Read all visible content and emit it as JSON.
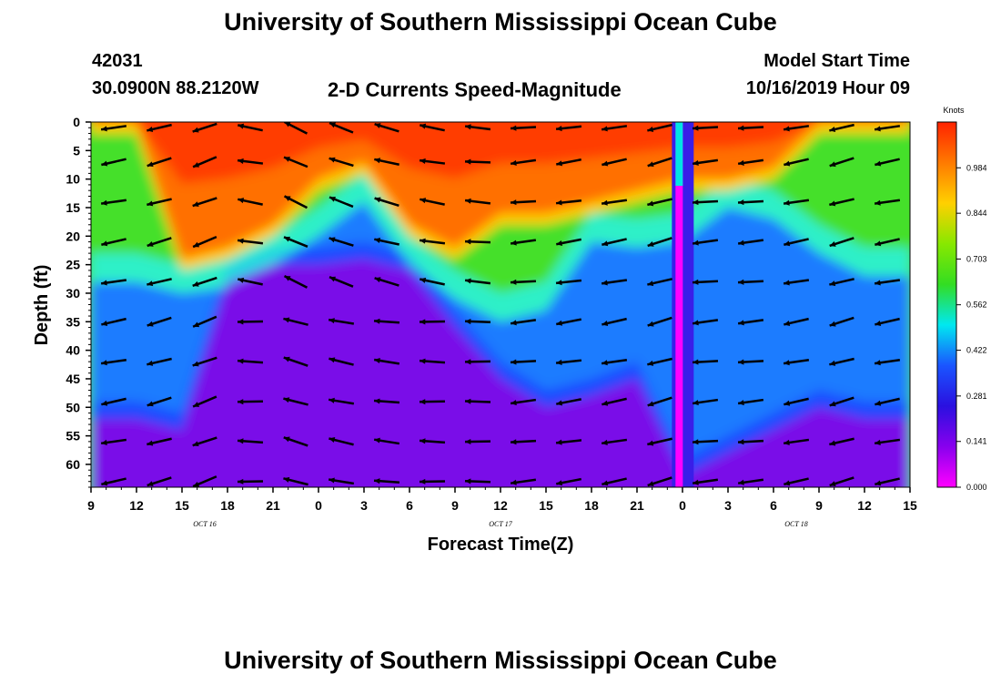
{
  "page": {
    "title_top": "University of Southern Mississippi Ocean Cube",
    "title_bottom": "University of Southern Mississippi Ocean Cube",
    "station_id": "42031",
    "location": "30.0900N 88.2120W",
    "subtitle": "2-D Currents Speed-Magnitude",
    "model_start_label": "Model Start Time",
    "model_start_value": "10/16/2019 Hour 09"
  },
  "chart_data": {
    "type": "heatmap",
    "title": "2-D Currents Speed-Magnitude",
    "xlabel": "Forecast Time(Z)",
    "ylabel": "Depth (ft)",
    "x_ticks": [
      "9",
      "12",
      "15",
      "18",
      "21",
      "0",
      "3",
      "6",
      "9",
      "12",
      "15",
      "18",
      "21",
      "0",
      "3",
      "6",
      "9",
      "12",
      "15"
    ],
    "x_range_hours": [
      0,
      54
    ],
    "date_labels": [
      {
        "text": "OCT 16",
        "hour": 7.5
      },
      {
        "text": "OCT 17",
        "hour": 27
      },
      {
        "text": "OCT 18",
        "hour": 46.5
      }
    ],
    "y_ticks": [
      "0",
      "5",
      "10",
      "15",
      "20",
      "25",
      "30",
      "35",
      "40",
      "45",
      "50",
      "55",
      "60"
    ],
    "ylim": [
      0,
      64
    ],
    "y_inverted": true,
    "colorbar": {
      "unit": "Knots",
      "ticks": [
        "0.984",
        "0.844",
        "0.703",
        "0.562",
        "0.422",
        "0.281",
        "0.141",
        "0.000"
      ],
      "range": [
        0,
        1.125
      ],
      "colors": [
        "#ff00ff",
        "#8800ee",
        "#2a10e0",
        "#1a55ff",
        "#00e8f0",
        "#33dd22",
        "#88e800",
        "#ffd000",
        "#ff7a00",
        "#ff2200"
      ]
    },
    "layers": {
      "hours": [
        0,
        3,
        6,
        9,
        12,
        15,
        18,
        21,
        24,
        27,
        30,
        33,
        36,
        39,
        42,
        45,
        48,
        51,
        54
      ],
      "upper_boundary_depth_ft": [
        23,
        23,
        25,
        24,
        20,
        15,
        9,
        20,
        26,
        30,
        28,
        16,
        17,
        16,
        10,
        12,
        18,
        22,
        22
      ],
      "lower_boundary_depth_ft": [
        52,
        52,
        54,
        28,
        25,
        25,
        24,
        26,
        36,
        45,
        50,
        48,
        45,
        62,
        58,
        54,
        50,
        52,
        52
      ],
      "orange_bottom_depth_ft": [
        0,
        0,
        24,
        22,
        18,
        10,
        7,
        18,
        22,
        16,
        16,
        14,
        12,
        10,
        10,
        8,
        0,
        0,
        0
      ]
    },
    "vector_rows_depth_ft": [
      1,
      7,
      14,
      21,
      28,
      35,
      42,
      49,
      56,
      63
    ],
    "vector_columns_hours": [
      1.5,
      4.5,
      7.5,
      10.5,
      13.5,
      16.5,
      19.5,
      22.5,
      25.5,
      28.5,
      31.5,
      34.5,
      37.5,
      40.5,
      43.5,
      46.5,
      49.5,
      52.5
    ],
    "vector_angles_deg": [
      190,
      195,
      200,
      170,
      155,
      160,
      165,
      170,
      175,
      185,
      188,
      190,
      195,
      185,
      185,
      190,
      195,
      190
    ]
  },
  "colors": {
    "vector": "#000000",
    "background": "#ffffff"
  }
}
